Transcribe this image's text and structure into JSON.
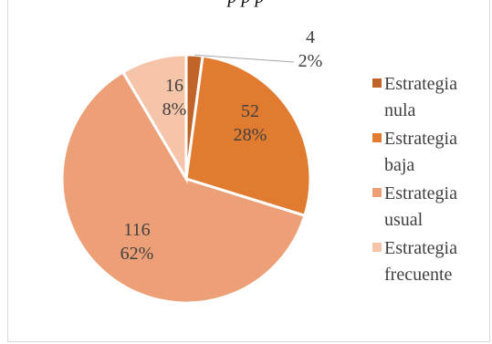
{
  "chart_data": {
    "type": "pie",
    "title": "p                    p  p",
    "categories": [
      "Estrategia nula",
      "Estrategia baja",
      "Estrategia usual",
      "Estrategia frecuente"
    ],
    "values": [
      4,
      52,
      116,
      16
    ],
    "percent_labels": [
      "2%",
      "28%",
      "62%",
      "8%"
    ],
    "value_labels": [
      "4",
      "52",
      "116",
      "16"
    ],
    "colors": [
      "#c0642a",
      "#e17b2f",
      "#eda077",
      "#f5c4a9"
    ],
    "legend_position": "right"
  }
}
